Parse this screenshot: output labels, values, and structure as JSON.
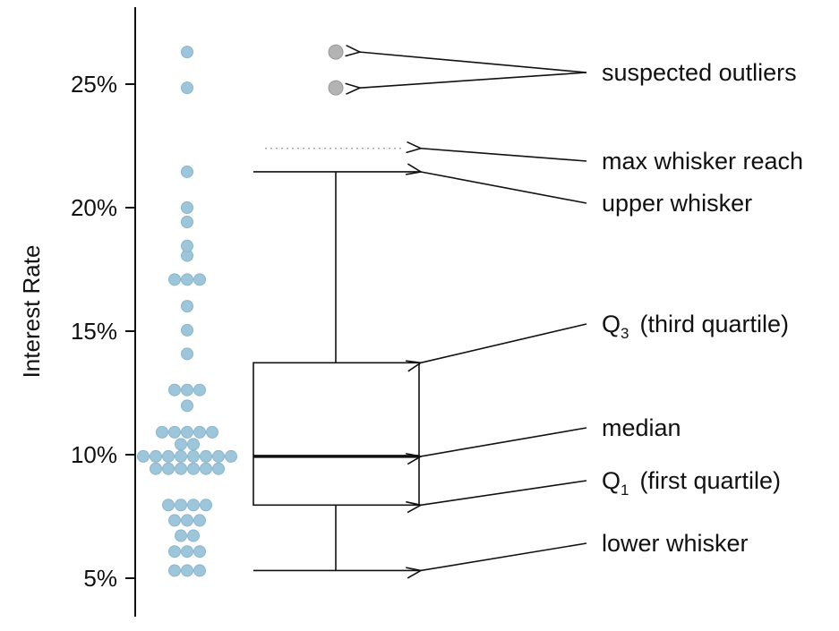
{
  "chart_data": {
    "type": "box",
    "ylabel": "Interest Rate",
    "ylim": [
      2.9,
      28.7
    ],
    "yticks": [
      {
        "value": 5,
        "label": "5%"
      },
      {
        "value": 10,
        "label": "10%"
      },
      {
        "value": 15,
        "label": "15%"
      },
      {
        "value": 20,
        "label": "20%"
      },
      {
        "value": 25,
        "label": "25%"
      }
    ],
    "dot_plot": {
      "color": "#9ec6da",
      "stroke": "#8ab6cc",
      "values": [
        5.31,
        5.31,
        5.31,
        6.08,
        6.08,
        6.08,
        6.72,
        6.72,
        7.34,
        7.34,
        7.34,
        7.96,
        7.96,
        7.96,
        7.96,
        9.43,
        9.43,
        9.43,
        9.43,
        9.43,
        9.43,
        9.93,
        9.93,
        9.93,
        9.93,
        9.93,
        9.93,
        9.93,
        9.93,
        10.42,
        10.42,
        10.91,
        10.91,
        10.91,
        10.91,
        10.91,
        11.98,
        12.62,
        12.62,
        12.62,
        14.08,
        15.04,
        16.01,
        17.09,
        17.09,
        17.09,
        18.06,
        18.45,
        19.42,
        20.0,
        21.45,
        24.85,
        26.3
      ]
    },
    "box": {
      "lower_whisker": 5.31,
      "q1": 7.96,
      "median": 9.93,
      "q3": 13.72,
      "upper_whisker": 21.45,
      "max_whisker_reach": 22.4,
      "outliers": [
        24.85,
        26.3
      ],
      "outlier_color": "#b3b3b3"
    },
    "annotations": [
      {
        "label": "suspected outliers",
        "targets": [
          "outliers"
        ]
      },
      {
        "label": "max whisker reach",
        "targets": [
          "max_whisker_reach"
        ]
      },
      {
        "label": "upper whisker",
        "targets": [
          "upper_whisker"
        ]
      },
      {
        "label": "Q",
        "sub": "3",
        "suffix": "(third quartile)",
        "targets": [
          "q3"
        ]
      },
      {
        "label": "median",
        "targets": [
          "median"
        ]
      },
      {
        "label": "Q",
        "sub": "1",
        "suffix": "(first quartile)",
        "targets": [
          "q1"
        ]
      },
      {
        "label": "lower whisker",
        "targets": [
          "lower_whisker"
        ]
      }
    ]
  }
}
